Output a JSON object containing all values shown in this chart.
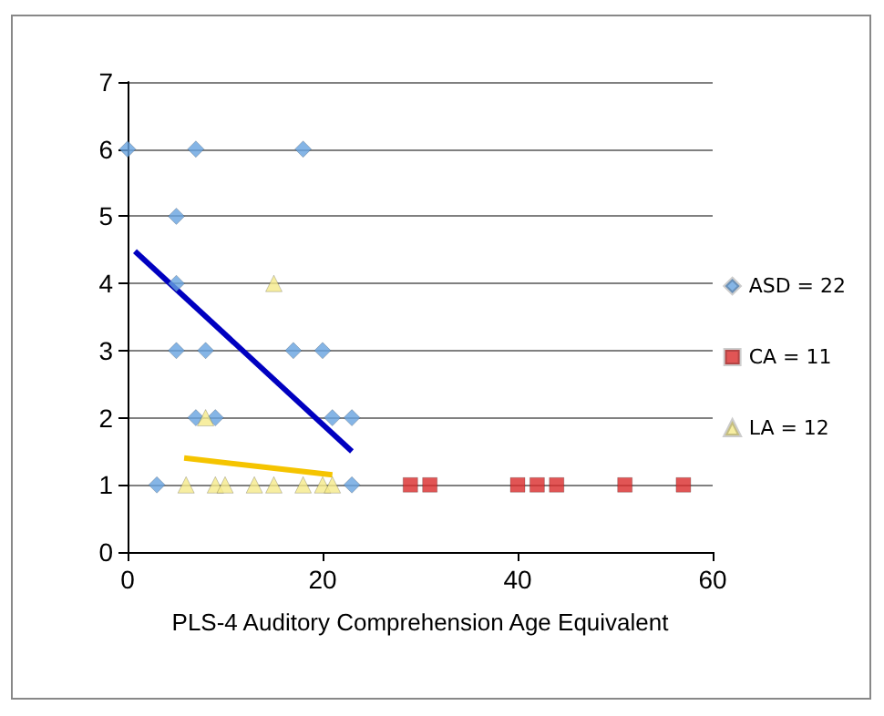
{
  "chart_data": {
    "type": "scatter",
    "xlabel": "PLS-4 Auditory Comprehension Age Equivalent",
    "xlim": [
      0,
      60
    ],
    "xticks": [
      0,
      20,
      40,
      60
    ],
    "ylim": [
      0,
      7
    ],
    "yticks": [
      0,
      1,
      2,
      3,
      4,
      5,
      6,
      7
    ],
    "grid": "y",
    "legend": "right",
    "series": [
      {
        "name": "ASD = 22",
        "color": "#66a3e0",
        "marker": "diamond",
        "x": [
          0,
          7,
          18,
          5,
          5,
          5,
          8,
          17,
          20,
          7,
          9,
          21,
          23,
          3,
          23
        ],
        "values": [
          6,
          6,
          6,
          5,
          4,
          3,
          3,
          3,
          3,
          2,
          2,
          2,
          2,
          1,
          1
        ]
      },
      {
        "name": "CA = 11",
        "color": "#d92b2b",
        "marker": "square",
        "x": [
          29,
          31,
          40,
          42,
          44,
          51,
          57
        ],
        "values": [
          1,
          1,
          1,
          1,
          1,
          1,
          1
        ]
      },
      {
        "name": "LA = 12",
        "color": "#f5ea8a",
        "marker": "triangle",
        "x": [
          15,
          8,
          6,
          9,
          10,
          13,
          15,
          18,
          20,
          21
        ],
        "values": [
          4,
          2,
          1,
          1,
          1,
          1,
          1,
          1,
          1,
          1
        ]
      },
      {
        "type": "line",
        "color": "#0000c0",
        "marker": "none",
        "x": [
          0.75,
          23
        ],
        "values": [
          4.48,
          1.5
        ]
      },
      {
        "type": "line",
        "color": "#f5c400",
        "marker": "none",
        "x": [
          5.8,
          21
        ],
        "values": [
          1.4,
          1.15
        ]
      }
    ]
  }
}
